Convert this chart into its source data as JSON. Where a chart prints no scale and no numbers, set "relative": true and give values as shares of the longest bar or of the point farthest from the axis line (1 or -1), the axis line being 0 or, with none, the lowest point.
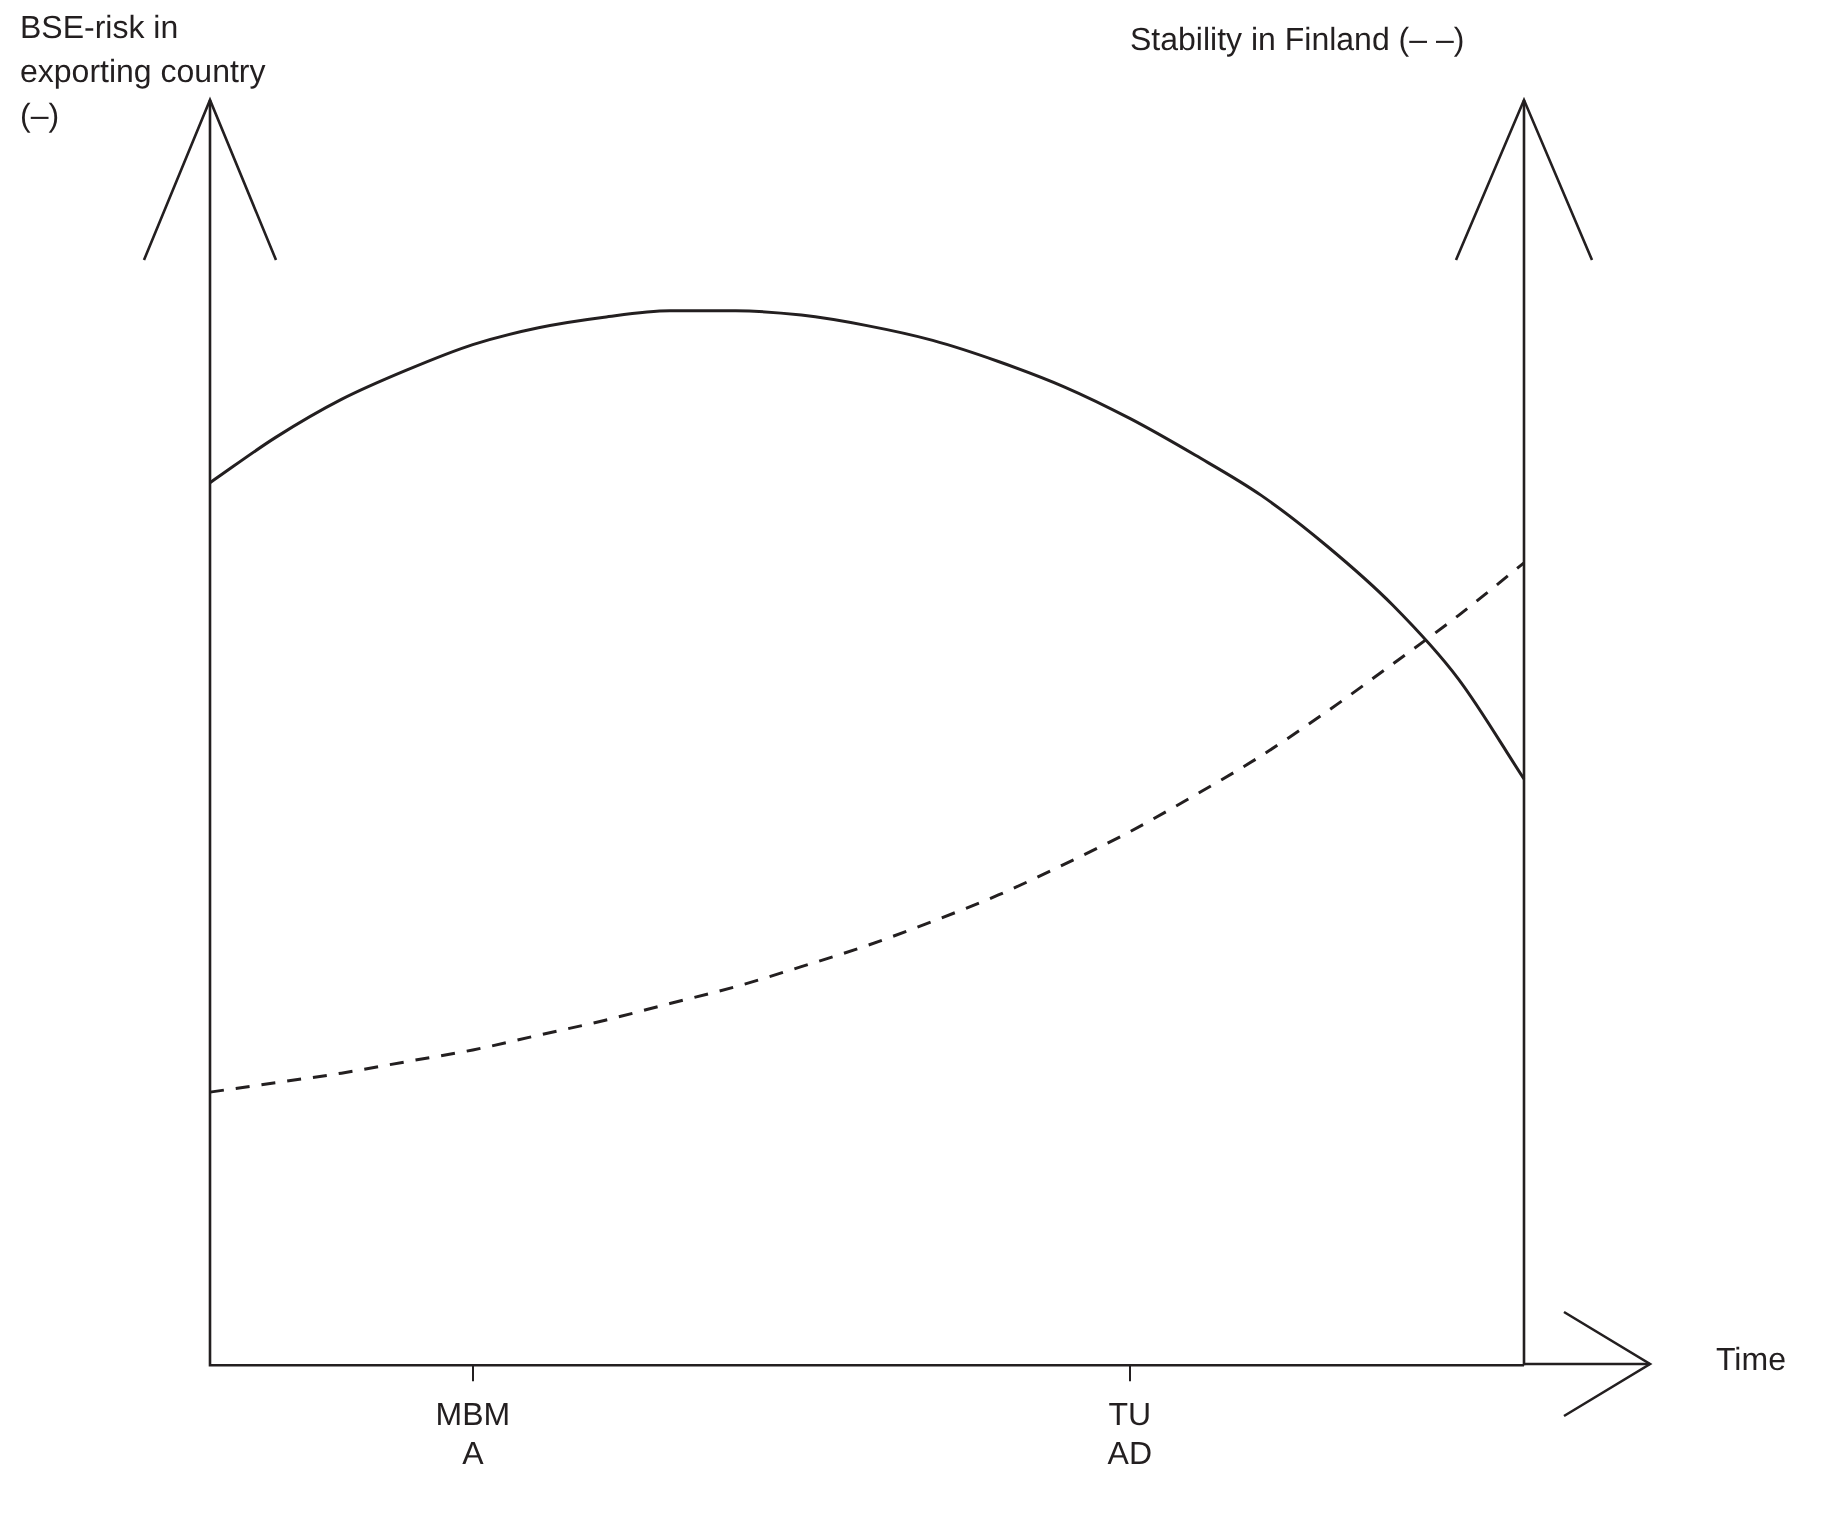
{
  "chart_data": {
    "type": "line",
    "relative": true,
    "annotations": [
      "BSE-risk in exporting country (–)",
      "Stability in Finland (– –)",
      "Time"
    ],
    "categories": [
      null,
      null,
      null,
      null,
      "MBM\nA",
      null,
      null,
      null,
      null,
      null,
      null,
      null,
      null,
      null,
      "TU\nAD",
      null,
      null,
      null,
      null,
      null,
      null
    ],
    "series": [
      {
        "color": "#231f20",
        "line_style": "solid",
        "values": [
          0.837,
          0.88,
          0.916,
          0.944,
          0.968,
          0.984,
          0.994,
          1.0,
          1.0,
          0.996,
          0.986,
          0.972,
          0.952,
          0.928,
          0.898,
          0.863,
          0.825,
          0.777,
          0.721,
          0.651,
          0.556
        ]
      },
      {
        "color": "#231f20",
        "line_style": "dashed",
        "values": [
          0.259,
          0.268,
          0.277,
          0.288,
          0.299,
          0.313,
          0.327,
          0.343,
          0.359,
          0.378,
          0.398,
          0.421,
          0.446,
          0.475,
          0.506,
          0.541,
          0.578,
          0.62,
          0.665,
          0.711,
          0.761
        ]
      }
    ],
    "marker": "none",
    "grid": false,
    "legend": false
  }
}
